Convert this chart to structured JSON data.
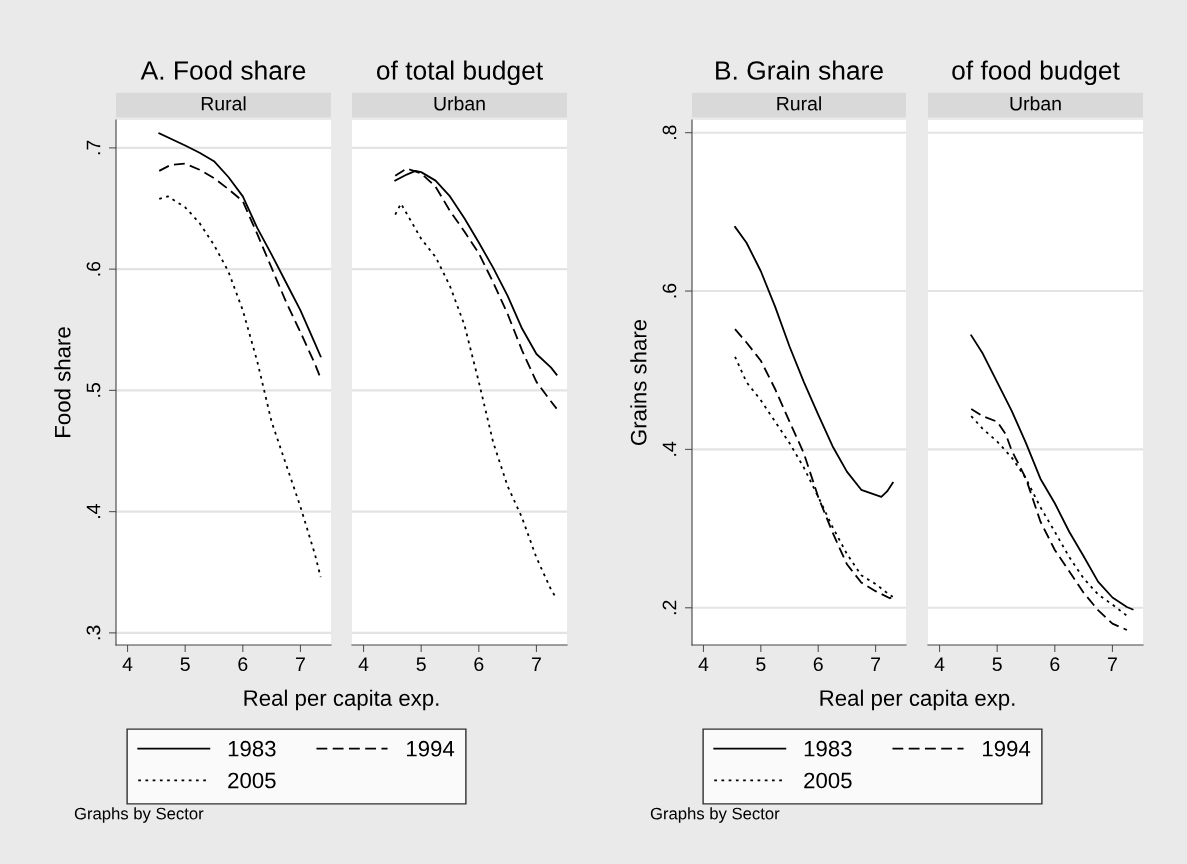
{
  "chart_data": [
    {
      "type": "line",
      "title": "A. Food share",
      "subtitle": "Rural",
      "xlabel": "Real per capita exp.",
      "ylabel": "Food share",
      "xlim": [
        3.8,
        7.53
      ],
      "ylim": [
        0.29,
        0.723
      ],
      "xticks": [
        4,
        5,
        6,
        7
      ],
      "yticks": [
        {
          "value": 0.3,
          "label": ".3"
        },
        {
          "value": 0.4,
          "label": ".4"
        },
        {
          "value": 0.5,
          "label": ".5"
        },
        {
          "value": 0.6,
          "label": ".6"
        },
        {
          "value": 0.7,
          "label": ".7"
        }
      ],
      "grid": "y",
      "legend": "bottom",
      "annotations": [
        "Graphs by Sector"
      ],
      "series": [
        {
          "name": "1983",
          "color": "#000000",
          "line_style": "solid",
          "x": [
            4.55,
            5.0,
            5.25,
            5.5,
            5.75,
            6.0,
            6.25,
            6.5,
            6.75,
            7.0,
            7.25,
            7.35
          ],
          "values": [
            0.712,
            0.702,
            0.696,
            0.689,
            0.676,
            0.66,
            0.634,
            0.612,
            0.589,
            0.566,
            0.539,
            0.528
          ]
        },
        {
          "name": "1994",
          "color": "#000000",
          "line_style": "dashed",
          "x": [
            4.55,
            4.75,
            5.0,
            5.25,
            5.5,
            5.75,
            6.0,
            6.25,
            6.5,
            6.75,
            7.0,
            7.25,
            7.35
          ],
          "values": [
            0.681,
            0.686,
            0.687,
            0.682,
            0.675,
            0.666,
            0.656,
            0.629,
            0.601,
            0.573,
            0.548,
            0.522,
            0.51
          ]
        },
        {
          "name": "2005",
          "color": "#000000",
          "line_style": "dotted",
          "x": [
            4.55,
            4.7,
            5.0,
            5.25,
            5.5,
            5.75,
            6.0,
            6.25,
            6.5,
            6.75,
            7.0,
            7.25,
            7.35
          ],
          "values": [
            0.658,
            0.66,
            0.651,
            0.638,
            0.62,
            0.598,
            0.566,
            0.524,
            0.474,
            0.439,
            0.404,
            0.365,
            0.346
          ]
        }
      ]
    },
    {
      "type": "line",
      "title": "of total budget",
      "subtitle": "Urban",
      "xlim": [
        3.8,
        7.53
      ],
      "ylim": [
        0.29,
        0.723
      ],
      "xticks": [
        4,
        5,
        6,
        7
      ],
      "yticks": [
        {
          "value": 0.3,
          "label": null
        },
        {
          "value": 0.4,
          "label": null
        },
        {
          "value": 0.5,
          "label": null
        },
        {
          "value": 0.6,
          "label": null
        },
        {
          "value": 0.7,
          "label": null
        }
      ],
      "grid": "y",
      "tick_labels": "x",
      "series": [
        {
          "color": "#000000",
          "line_style": "solid",
          "x": [
            4.55,
            4.75,
            4.9,
            5.0,
            5.25,
            5.5,
            5.75,
            6.0,
            6.25,
            6.5,
            6.75,
            7.0,
            7.25,
            7.35
          ],
          "values": [
            0.673,
            0.678,
            0.681,
            0.68,
            0.673,
            0.66,
            0.642,
            0.622,
            0.601,
            0.578,
            0.551,
            0.53,
            0.519,
            0.513
          ]
        },
        {
          "color": "#000000",
          "line_style": "dashed",
          "x": [
            4.55,
            4.75,
            5.0,
            5.25,
            5.5,
            5.75,
            6.0,
            6.25,
            6.5,
            6.75,
            7.0,
            7.25,
            7.35
          ],
          "values": [
            0.677,
            0.683,
            0.679,
            0.668,
            0.648,
            0.631,
            0.613,
            0.589,
            0.563,
            0.533,
            0.507,
            0.491,
            0.485
          ]
        },
        {
          "color": "#000000",
          "line_style": "dotted",
          "x": [
            4.55,
            4.65,
            5.0,
            5.25,
            5.5,
            5.75,
            6.0,
            6.25,
            6.5,
            6.75,
            7.0,
            7.25,
            7.35
          ],
          "values": [
            0.645,
            0.654,
            0.625,
            0.61,
            0.586,
            0.554,
            0.507,
            0.457,
            0.421,
            0.395,
            0.362,
            0.336,
            0.328
          ]
        }
      ]
    },
    {
      "type": "line",
      "title": "B. Grain share",
      "subtitle": "Rural",
      "xlabel": "Real per capita exp.",
      "ylabel": "Grains share",
      "xlim": [
        3.8,
        7.53
      ],
      "ylim": [
        0.153,
        0.816
      ],
      "xticks": [
        4,
        5,
        6,
        7
      ],
      "yticks": [
        {
          "value": 0.2,
          "label": ".2"
        },
        {
          "value": 0.4,
          "label": ".4"
        },
        {
          "value": 0.6,
          "label": ".6"
        },
        {
          "value": 0.8,
          "label": ".8"
        }
      ],
      "grid": "y",
      "legend": "bottom",
      "annotations": [
        "Graphs by Sector"
      ],
      "series": [
        {
          "name": "1983",
          "color": "#000000",
          "line_style": "solid",
          "x": [
            4.55,
            4.75,
            5.0,
            5.25,
            5.5,
            5.75,
            6.0,
            6.25,
            6.5,
            6.75,
            6.9,
            7.1,
            7.2,
            7.3
          ],
          "values": [
            0.681,
            0.661,
            0.625,
            0.58,
            0.53,
            0.485,
            0.444,
            0.404,
            0.372,
            0.349,
            0.345,
            0.34,
            0.347,
            0.358
          ]
        },
        {
          "name": "1994",
          "color": "#000000",
          "line_style": "dashed",
          "x": [
            4.55,
            4.75,
            5.0,
            5.25,
            5.5,
            5.75,
            6.0,
            6.25,
            6.5,
            6.75,
            7.0,
            7.25,
            7.3
          ],
          "values": [
            0.552,
            0.535,
            0.512,
            0.476,
            0.435,
            0.395,
            0.34,
            0.295,
            0.255,
            0.232,
            0.221,
            0.212,
            0.214
          ]
        },
        {
          "name": "2005",
          "color": "#000000",
          "line_style": "dotted",
          "x": [
            4.55,
            4.75,
            5.0,
            5.25,
            5.5,
            5.75,
            6.0,
            6.25,
            6.5,
            6.75,
            7.0,
            7.25,
            7.3
          ],
          "values": [
            0.517,
            0.485,
            0.462,
            0.435,
            0.408,
            0.377,
            0.34,
            0.302,
            0.268,
            0.241,
            0.23,
            0.216,
            0.214
          ]
        }
      ]
    },
    {
      "type": "line",
      "title": "of food budget",
      "subtitle": "Urban",
      "xlim": [
        3.8,
        7.53
      ],
      "ylim": [
        0.153,
        0.816
      ],
      "xticks": [
        4,
        5,
        6,
        7
      ],
      "yticks": [
        {
          "value": 0.2,
          "label": null
        },
        {
          "value": 0.4,
          "label": null
        },
        {
          "value": 0.6,
          "label": null
        },
        {
          "value": 0.8,
          "label": null
        }
      ],
      "grid": "y",
      "tick_labels": "x",
      "series": [
        {
          "color": "#000000",
          "line_style": "solid",
          "x": [
            4.55,
            4.75,
            5.0,
            5.25,
            5.5,
            5.75,
            6.0,
            6.25,
            6.5,
            6.75,
            7.0,
            7.25,
            7.35
          ],
          "values": [
            0.544,
            0.521,
            0.485,
            0.449,
            0.408,
            0.363,
            0.332,
            0.296,
            0.265,
            0.233,
            0.213,
            0.201,
            0.198
          ]
        },
        {
          "color": "#000000",
          "line_style": "dashed",
          "x": [
            4.55,
            4.75,
            5.0,
            5.15,
            5.25,
            5.5,
            5.75,
            6.0,
            6.25,
            6.5,
            6.75,
            7.0,
            7.25
          ],
          "values": [
            0.451,
            0.442,
            0.435,
            0.419,
            0.399,
            0.363,
            0.309,
            0.273,
            0.246,
            0.219,
            0.197,
            0.18,
            0.172
          ]
        },
        {
          "color": "#000000",
          "line_style": "dotted",
          "x": [
            4.55,
            4.75,
            5.0,
            5.25,
            5.5,
            5.75,
            6.0,
            6.25,
            6.5,
            6.75,
            7.0,
            7.25
          ],
          "values": [
            0.442,
            0.426,
            0.41,
            0.39,
            0.363,
            0.327,
            0.296,
            0.264,
            0.237,
            0.217,
            0.204,
            0.19
          ]
        }
      ]
    }
  ]
}
